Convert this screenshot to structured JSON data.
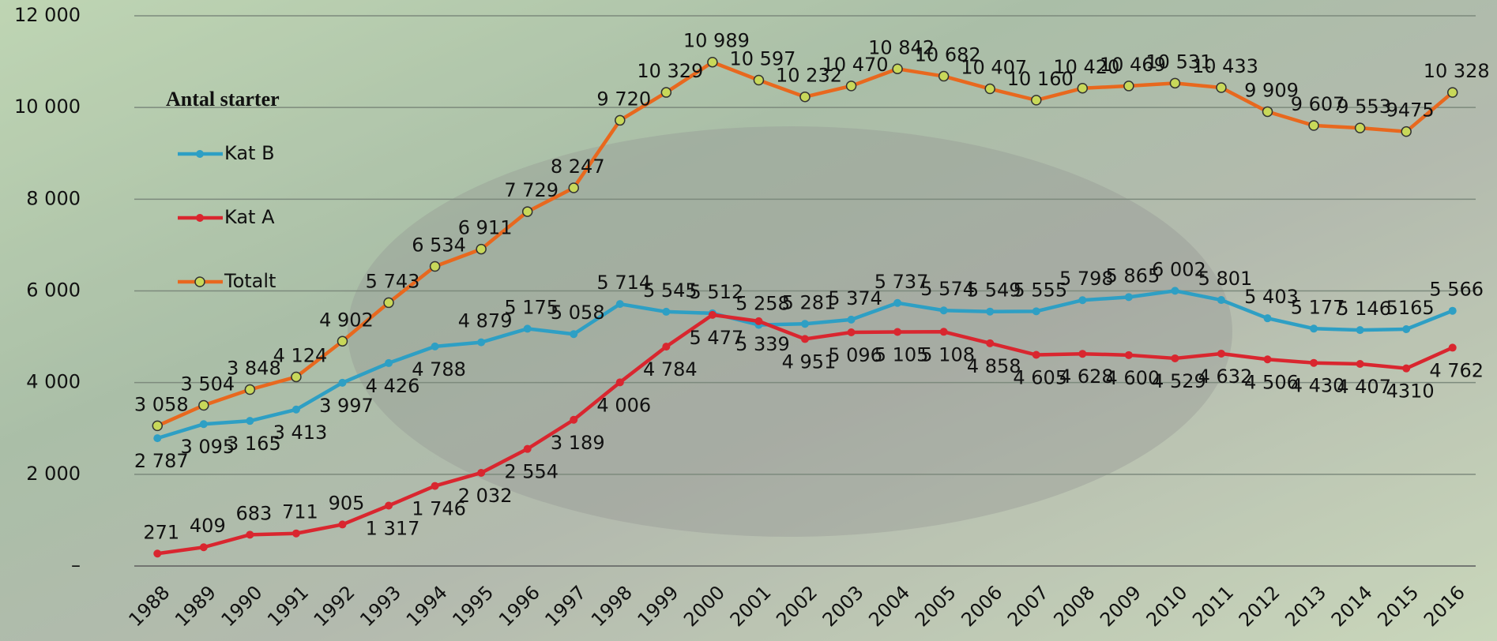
{
  "chart_data": {
    "type": "line",
    "legend_title": "Antal starter",
    "categories": [
      "1988",
      "1989",
      "1990",
      "1991",
      "1992",
      "1993",
      "1994",
      "1995",
      "1996",
      "1997",
      "1998",
      "1999",
      "2000",
      "2001",
      "2002",
      "2003",
      "2004",
      "2005",
      "2006",
      "2007",
      "2008",
      "2009",
      "2010",
      "2011",
      "2012",
      "2013",
      "2014",
      "2015",
      "2016"
    ],
    "series": [
      {
        "name": "Kat B",
        "color": "#2e9fc4",
        "values": [
          2787,
          3095,
          3165,
          3413,
          3997,
          4426,
          4788,
          4879,
          5175,
          5058,
          5714,
          5545,
          5512,
          5258,
          5281,
          5374,
          5737,
          5574,
          5549,
          5555,
          5798,
          5865,
          6002,
          5801,
          5403,
          5177,
          5146,
          5165,
          5566
        ],
        "value_labels": [
          "2 787",
          "3 095",
          "3 165",
          "3 413",
          "3 997",
          "4 426",
          "4 788",
          "4 879",
          "5 175",
          "5 058",
          "5 714",
          "5 545",
          "5 512",
          "5 258",
          "5 281",
          "5 374",
          "5 737",
          "5 574",
          "5 549",
          "5 555",
          "5 798",
          "5 865",
          "6 002",
          "5 801",
          "5 403",
          "5 177",
          "5 146",
          "5165",
          "5 566"
        ]
      },
      {
        "name": "Kat A",
        "color": "#d9262f",
        "values": [
          271,
          409,
          683,
          711,
          905,
          1317,
          1746,
          2032,
          2554,
          3189,
          4006,
          4784,
          5477,
          5339,
          4951,
          5096,
          5105,
          5108,
          4858,
          4605,
          4628,
          4600,
          4529,
          4632,
          4506,
          4430,
          4407,
          4310,
          4762
        ],
        "value_labels": [
          "271",
          "409",
          "683",
          "711",
          "905",
          "1 317",
          "1 746",
          "2 032",
          "2 554",
          "3 189",
          "4 006",
          "4 784",
          "5 477",
          "5 339",
          "4 951",
          "5 096",
          "5 105",
          "5 108",
          "4 858",
          "4 605",
          "4 628",
          "4 600",
          "4 529",
          "4 632",
          "4 506",
          "4 430",
          "4 407",
          "4310",
          "4 762"
        ]
      },
      {
        "name": "Totalt",
        "color": "#e8681e",
        "marker_color": "#c8d85a",
        "values": [
          3058,
          3504,
          3848,
          4124,
          4902,
          5743,
          6534,
          6911,
          7729,
          8247,
          9720,
          10329,
          10989,
          10597,
          10232,
          10470,
          10842,
          10682,
          10407,
          10160,
          10420,
          10469,
          10531,
          10433,
          9909,
          9607,
          9553,
          9475,
          10328
        ],
        "value_labels": [
          "3 058",
          "3 504",
          "3 848",
          "4 124",
          "4 902",
          "5 743",
          "6 534",
          "6 911",
          "7 729",
          "8 247",
          "9 720",
          "10 329",
          "10 989",
          "10 597",
          "10 232",
          "10 470",
          "10 842",
          "10 682",
          "10 407",
          "10 160",
          "10 420",
          "10 469",
          "10 531",
          "10 433",
          "9 909",
          "9 607",
          "9 553",
          "9475",
          "10 328"
        ]
      }
    ],
    "ylim": [
      0,
      12000
    ],
    "yticks": [
      {
        "value": 0,
        "label": "–"
      },
      {
        "value": 2000,
        "label": "2 000"
      },
      {
        "value": 4000,
        "label": "4 000"
      },
      {
        "value": 6000,
        "label": "6 000"
      },
      {
        "value": 8000,
        "label": "8 000"
      },
      {
        "value": 10000,
        "label": "10 000"
      },
      {
        "value": 12000,
        "label": "12 000"
      }
    ],
    "grid": true
  }
}
